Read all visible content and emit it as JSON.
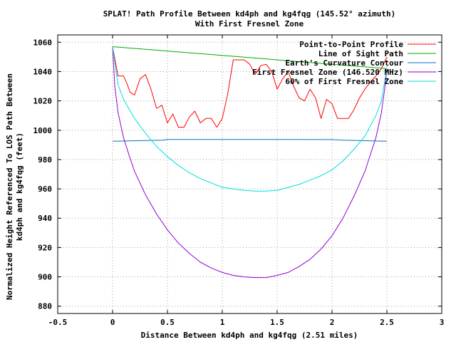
{
  "chart_data": {
    "type": "line",
    "title": "SPLAT! Path Profile Between kd4ph and kg4fqg (145.52° azimuth)",
    "subtitle": "With First Fresnel Zone",
    "xlabel": "Distance Between kd4ph and kg4fqg (2.51 miles)",
    "ylabel_line1": "Normalized Height Referenced To LOS Path Between",
    "ylabel_line2": "kd4ph and kg4fqg (feet)",
    "xlim": [
      -0.5,
      3
    ],
    "ylim": [
      875,
      1065
    ],
    "xticks": [
      -0.5,
      0,
      0.5,
      1,
      1.5,
      2,
      2.5,
      3
    ],
    "xtick_labels": [
      "-0.5",
      "0",
      "0.5",
      "1",
      "1.5",
      "2",
      "2.5",
      "3"
    ],
    "yticks": [
      880,
      900,
      920,
      940,
      960,
      980,
      1000,
      1020,
      1040,
      1060
    ],
    "grid": true,
    "legend_position": "top-right",
    "series": [
      {
        "name": "Point-to-Point Profile",
        "color": "#ff0000",
        "points": [
          [
            0.0,
            1057
          ],
          [
            0.05,
            1037
          ],
          [
            0.1,
            1037
          ],
          [
            0.13,
            1032
          ],
          [
            0.16,
            1026
          ],
          [
            0.2,
            1024
          ],
          [
            0.25,
            1035
          ],
          [
            0.3,
            1038
          ],
          [
            0.35,
            1028
          ],
          [
            0.4,
            1015
          ],
          [
            0.45,
            1017
          ],
          [
            0.5,
            1005
          ],
          [
            0.55,
            1011
          ],
          [
            0.6,
            1002
          ],
          [
            0.65,
            1002
          ],
          [
            0.7,
            1009
          ],
          [
            0.75,
            1013
          ],
          [
            0.8,
            1005
          ],
          [
            0.85,
            1008
          ],
          [
            0.9,
            1008
          ],
          [
            0.95,
            1002
          ],
          [
            1.0,
            1008
          ],
          [
            1.05,
            1025
          ],
          [
            1.1,
            1048
          ],
          [
            1.15,
            1048
          ],
          [
            1.2,
            1048
          ],
          [
            1.25,
            1045
          ],
          [
            1.3,
            1038
          ],
          [
            1.35,
            1044
          ],
          [
            1.4,
            1045
          ],
          [
            1.45,
            1040
          ],
          [
            1.5,
            1028
          ],
          [
            1.55,
            1035
          ],
          [
            1.6,
            1040
          ],
          [
            1.65,
            1030
          ],
          [
            1.7,
            1022
          ],
          [
            1.75,
            1020
          ],
          [
            1.8,
            1028
          ],
          [
            1.85,
            1022
          ],
          [
            1.9,
            1008
          ],
          [
            1.95,
            1021
          ],
          [
            2.0,
            1018
          ],
          [
            2.05,
            1008
          ],
          [
            2.1,
            1008
          ],
          [
            2.15,
            1008
          ],
          [
            2.2,
            1014
          ],
          [
            2.25,
            1022
          ],
          [
            2.3,
            1028
          ],
          [
            2.35,
            1033
          ],
          [
            2.4,
            1037
          ],
          [
            2.45,
            1042
          ],
          [
            2.5,
            1050
          ]
        ]
      },
      {
        "name": "Line of Sight Path",
        "color": "#00aa00",
        "points": [
          [
            0.0,
            1057
          ],
          [
            2.5,
            1042
          ]
        ]
      },
      {
        "name": "Earth's Curvature Contour",
        "color": "#0072bd",
        "points": [
          [
            0.0,
            992.5
          ],
          [
            0.45,
            993.2
          ],
          [
            0.5,
            993.7
          ],
          [
            1.0,
            993.7
          ],
          [
            1.5,
            993.7
          ],
          [
            2.0,
            993.6
          ],
          [
            2.1,
            993.2
          ],
          [
            2.5,
            992.5
          ]
        ]
      },
      {
        "name": "First Fresnel Zone (146.520 MHz)",
        "color": "#9400d3",
        "points": [
          [
            0.0,
            1057
          ],
          [
            0.02,
            1030
          ],
          [
            0.05,
            1012
          ],
          [
            0.1,
            995
          ],
          [
            0.15,
            983
          ],
          [
            0.2,
            972
          ],
          [
            0.3,
            956
          ],
          [
            0.4,
            943
          ],
          [
            0.5,
            932
          ],
          [
            0.6,
            923
          ],
          [
            0.7,
            916
          ],
          [
            0.8,
            910
          ],
          [
            0.9,
            906
          ],
          [
            1.0,
            903
          ],
          [
            1.1,
            901
          ],
          [
            1.2,
            900
          ],
          [
            1.3,
            899.5
          ],
          [
            1.4,
            899.5
          ],
          [
            1.5,
            901
          ],
          [
            1.6,
            903
          ],
          [
            1.7,
            907
          ],
          [
            1.8,
            912
          ],
          [
            1.9,
            919
          ],
          [
            2.0,
            928
          ],
          [
            2.1,
            940
          ],
          [
            2.2,
            955
          ],
          [
            2.3,
            972
          ],
          [
            2.4,
            995
          ],
          [
            2.45,
            1012
          ],
          [
            2.48,
            1028
          ],
          [
            2.5,
            1042
          ]
        ]
      },
      {
        "name": "60% of First Fresnel Zone",
        "color": "#00dddd",
        "points": [
          [
            0.0,
            1057
          ],
          [
            0.05,
            1031
          ],
          [
            0.1,
            1021
          ],
          [
            0.2,
            1008
          ],
          [
            0.3,
            998
          ],
          [
            0.4,
            989
          ],
          [
            0.5,
            982
          ],
          [
            0.6,
            976
          ],
          [
            0.7,
            971
          ],
          [
            0.8,
            967
          ],
          [
            0.9,
            964
          ],
          [
            1.0,
            961
          ],
          [
            1.1,
            960
          ],
          [
            1.2,
            959
          ],
          [
            1.3,
            958.5
          ],
          [
            1.4,
            958.5
          ],
          [
            1.5,
            959
          ],
          [
            1.6,
            961
          ],
          [
            1.7,
            963
          ],
          [
            1.8,
            966
          ],
          [
            1.9,
            969
          ],
          [
            2.0,
            973
          ],
          [
            2.1,
            979
          ],
          [
            2.2,
            987
          ],
          [
            2.3,
            996
          ],
          [
            2.4,
            1010
          ],
          [
            2.45,
            1020
          ],
          [
            2.5,
            1042
          ]
        ]
      }
    ]
  }
}
